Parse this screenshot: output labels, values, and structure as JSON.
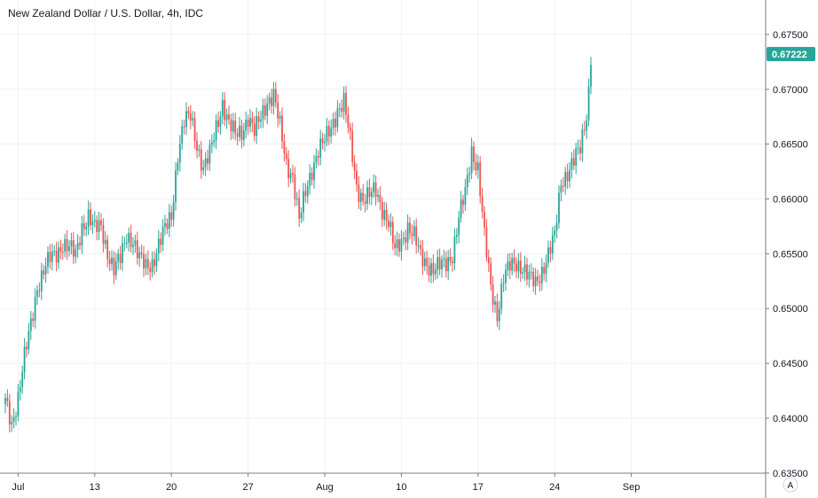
{
  "chart_data": {
    "type": "candlestick",
    "title": "New Zealand Dollar / U.S. Dollar, 4h, IDC",
    "y_ticks": [
      "0.63500",
      "0.64000",
      "0.64500",
      "0.65000",
      "0.65500",
      "0.66000",
      "0.66500",
      "0.67000",
      "0.67500"
    ],
    "y_tick_values": [
      0.635,
      0.64,
      0.645,
      0.65,
      0.655,
      0.66,
      0.665,
      0.67,
      0.675
    ],
    "x_ticks": [
      "Jul",
      "13",
      "20",
      "27",
      "Aug",
      "10",
      "17",
      "24",
      "Sep"
    ],
    "x_tick_bar_index": [
      6,
      42,
      78,
      114,
      150,
      186,
      222,
      258,
      294
    ],
    "ylim": [
      0.6345,
      0.6775
    ],
    "last_price": "0.67222",
    "grid": true,
    "colors": {
      "up": "#26a69a",
      "down": "#ef5350",
      "price_label_bg": "#26a69a"
    },
    "anchors": [
      [
        0,
        0.6415
      ],
      [
        3,
        0.6395
      ],
      [
        6,
        0.642
      ],
      [
        9,
        0.6455
      ],
      [
        12,
        0.6485
      ],
      [
        15,
        0.652
      ],
      [
        18,
        0.6535
      ],
      [
        21,
        0.6545
      ],
      [
        24,
        0.655
      ],
      [
        27,
        0.656
      ],
      [
        30,
        0.6555
      ],
      [
        33,
        0.6548
      ],
      [
        36,
        0.6575
      ],
      [
        39,
        0.6585
      ],
      [
        42,
        0.6572
      ],
      [
        45,
        0.6575
      ],
      [
        48,
        0.6552
      ],
      [
        51,
        0.6535
      ],
      [
        54,
        0.6545
      ],
      [
        57,
        0.6568
      ],
      [
        60,
        0.6562
      ],
      [
        63,
        0.6545
      ],
      [
        66,
        0.6538
      ],
      [
        69,
        0.6542
      ],
      [
        72,
        0.6558
      ],
      [
        75,
        0.6572
      ],
      [
        78,
        0.6585
      ],
      [
        81,
        0.6642
      ],
      [
        84,
        0.667
      ],
      [
        87,
        0.6675
      ],
      [
        90,
        0.665
      ],
      [
        93,
        0.6628
      ],
      [
        96,
        0.664
      ],
      [
        99,
        0.6665
      ],
      [
        102,
        0.6688
      ],
      [
        105,
        0.6668
      ],
      [
        108,
        0.6658
      ],
      [
        111,
        0.6662
      ],
      [
        114,
        0.6675
      ],
      [
        117,
        0.666
      ],
      [
        120,
        0.6675
      ],
      [
        123,
        0.669
      ],
      [
        126,
        0.6695
      ],
      [
        129,
        0.6665
      ],
      [
        132,
        0.6632
      ],
      [
        135,
        0.6622
      ],
      [
        138,
        0.658
      ],
      [
        141,
        0.6605
      ],
      [
        144,
        0.6628
      ],
      [
        147,
        0.6645
      ],
      [
        150,
        0.6652
      ],
      [
        153,
        0.6665
      ],
      [
        156,
        0.6682
      ],
      [
        159,
        0.6688
      ],
      [
        162,
        0.6652
      ],
      [
        165,
        0.6612
      ],
      [
        168,
        0.66
      ],
      [
        171,
        0.6602
      ],
      [
        174,
        0.6608
      ],
      [
        177,
        0.6592
      ],
      [
        180,
        0.6578
      ],
      [
        183,
        0.6552
      ],
      [
        186,
        0.6562
      ],
      [
        189,
        0.6575
      ],
      [
        192,
        0.6565
      ],
      [
        195,
        0.6548
      ],
      [
        198,
        0.6542
      ],
      [
        201,
        0.6535
      ],
      [
        204,
        0.6538
      ],
      [
        207,
        0.6542
      ],
      [
        210,
        0.655
      ],
      [
        213,
        0.6582
      ],
      [
        216,
        0.6605
      ],
      [
        219,
        0.6645
      ],
      [
        222,
        0.6628
      ],
      [
        225,
        0.6565
      ],
      [
        228,
        0.652
      ],
      [
        231,
        0.6495
      ],
      [
        234,
        0.6528
      ],
      [
        237,
        0.6538
      ],
      [
        240,
        0.6542
      ],
      [
        243,
        0.6538
      ],
      [
        246,
        0.6528
      ],
      [
        249,
        0.6522
      ],
      [
        252,
        0.6535
      ],
      [
        255,
        0.655
      ],
      [
        258,
        0.6565
      ],
      [
        261,
        0.6615
      ],
      [
        264,
        0.6625
      ],
      [
        267,
        0.6635
      ],
      [
        270,
        0.6645
      ],
      [
        273,
        0.6678
      ],
      [
        275,
        0.6722
      ]
    ]
  },
  "ui": {
    "corner_button_label": "A"
  }
}
